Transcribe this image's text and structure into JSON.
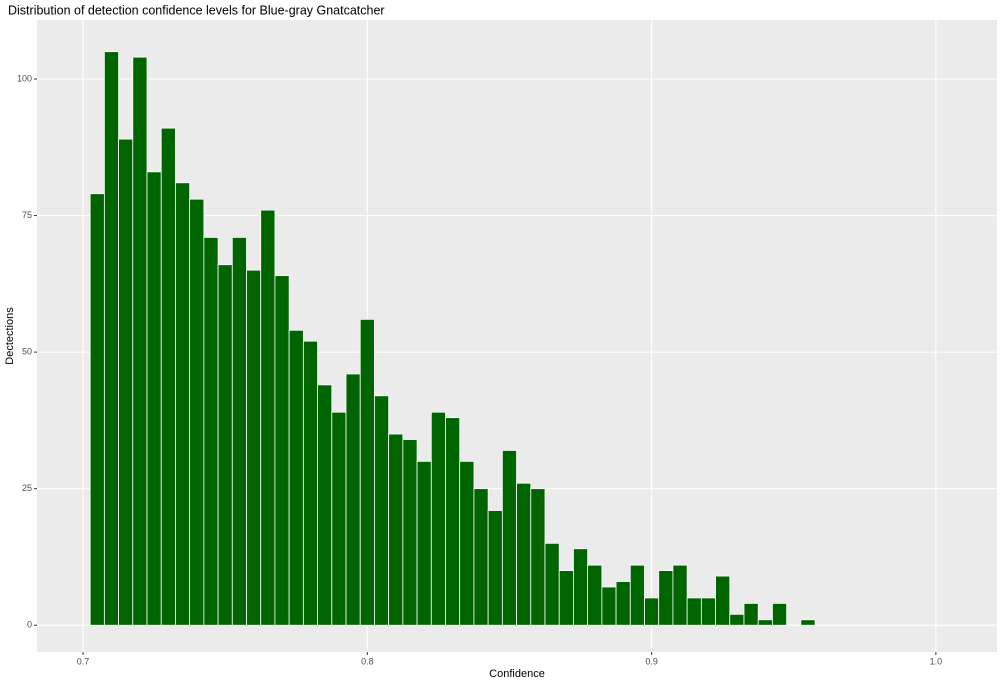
{
  "chart_data": {
    "type": "histogram",
    "title": "Distribution of detection confidence levels for Blue-gray Gnatcatcher",
    "x_label": "Confidence",
    "y_label": "Dectections",
    "bins": [
      0.7025,
      0.7075,
      0.7125,
      0.7175,
      0.7225,
      0.7275,
      0.7325,
      0.7375,
      0.7425,
      0.7475,
      0.7525,
      0.7575,
      0.7625,
      0.7675,
      0.7725,
      0.7775,
      0.7825,
      0.7875,
      0.7925,
      0.7975,
      0.8025,
      0.8075,
      0.8125,
      0.8175,
      0.8225,
      0.8275,
      0.8325,
      0.8375,
      0.8425,
      0.8475,
      0.8525,
      0.8575,
      0.8625,
      0.8675,
      0.8725,
      0.8775,
      0.8825,
      0.8875,
      0.8925,
      0.8975,
      0.9025,
      0.9075,
      0.9125,
      0.9175,
      0.9225,
      0.9275,
      0.9325,
      0.9375,
      0.9425,
      0.9475,
      0.9525,
      0.9575
    ],
    "values": [
      79,
      105,
      89,
      104,
      83,
      91,
      81,
      78,
      71,
      66,
      71,
      65,
      76,
      64,
      54,
      52,
      44,
      39,
      46,
      56,
      42,
      35,
      34,
      30,
      39,
      38,
      30,
      25,
      21,
      32,
      26,
      25,
      15,
      10,
      14,
      11,
      7,
      8,
      11,
      5,
      10,
      11,
      5,
      5,
      9,
      2,
      4,
      1,
      4,
      0,
      1
    ],
    "color": "#006400",
    "xlim": [
      0.6838,
      1.0215
    ],
    "xticks": [
      0.7,
      0.8,
      0.9,
      {
        "value": 1.0,
        "label": "1.0"
      }
    ],
    "ylim": [
      -4.9,
      110.8
    ],
    "yticks": [
      0,
      25,
      50,
      75,
      100
    ],
    "grid": true
  }
}
